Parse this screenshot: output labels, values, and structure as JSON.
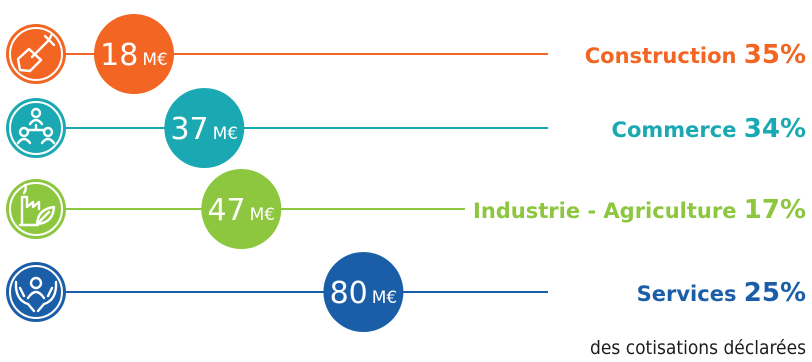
{
  "chart_data": {
    "type": "bar",
    "unit": "M€",
    "footnote": "des cotisations déclarées",
    "rows": [
      {
        "category": "Construction",
        "amount": 18,
        "percent": "35%",
        "color": "#f26522",
        "icon": "shovel-icon"
      },
      {
        "category": "Commerce",
        "amount": 37,
        "percent": "34%",
        "color": "#1aa9b3",
        "icon": "people-network-icon"
      },
      {
        "category": "Industrie - Agriculture",
        "amount": 47,
        "percent": "17%",
        "color": "#8dc63f",
        "icon": "factory-leaf-icon"
      },
      {
        "category": "Services",
        "amount": 80,
        "percent": "25%",
        "color": "#1b5ea8",
        "icon": "hands-person-icon"
      }
    ]
  }
}
